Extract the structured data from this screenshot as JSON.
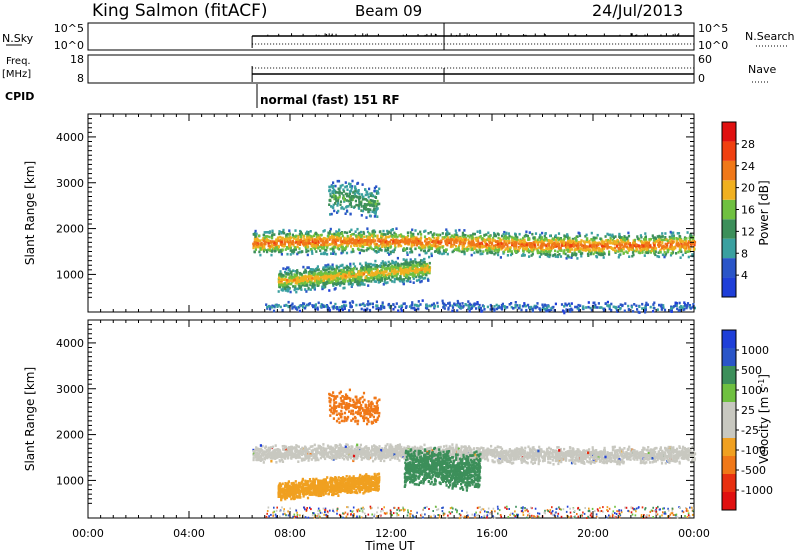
{
  "header": {
    "site": "King Salmon (fitACF)",
    "beam": "Beam 09",
    "date": "24/Jul/2013"
  },
  "nsky_panel": {
    "label": "N.Sky",
    "ticks_left": [
      "10^5",
      "10^0"
    ],
    "ticks_right": [
      "10^5",
      "10^0"
    ],
    "right_label": "N.Search"
  },
  "freq_panel": {
    "label_line1": "Freq.",
    "label_line2": "[MHz]",
    "ticks_left": [
      "18",
      "8"
    ],
    "ticks_right": [
      "60",
      "0"
    ],
    "right_label": "Nave"
  },
  "cpid": {
    "label": "CPID",
    "program": "normal (fast) 151 RF"
  },
  "colors": {
    "power": [
      "#1f3fd8",
      "#2a55c8",
      "#3aa0a0",
      "#3c8f5a",
      "#6fc040",
      "#f0b020",
      "#f07818",
      "#f04010",
      "#e01010"
    ],
    "velocity": [
      "#1f3fd8",
      "#2a55c8",
      "#3c8f5a",
      "#6fc040",
      "#c8c8c0",
      "#c8c8c0",
      "#f0a020",
      "#f07818",
      "#e83010",
      "#e01010"
    ]
  },
  "chart_data": [
    {
      "type": "heatmap",
      "title": "",
      "ylabel": "Slant Range [km]",
      "xlabel": "",
      "ylim": [
        180,
        4500
      ],
      "yticks": [
        1000,
        2000,
        3000,
        4000
      ],
      "xlim_hours": [
        0,
        24
      ],
      "data_start_hour": 6.5,
      "colorbar": {
        "label": "Power [dB]",
        "ticks": [
          "4",
          "8",
          "12",
          "16",
          "20",
          "24",
          "28"
        ],
        "range": [
          0,
          30
        ]
      },
      "features": [
        {
          "desc": "main E/F echo band",
          "start_hour": 6.5,
          "end_hour": 24,
          "range_km": [
            1400,
            2000
          ],
          "peak_power_db": 22
        },
        {
          "desc": "lower tilted band",
          "start_hour": 7.5,
          "end_hour": 13.5,
          "range_km": [
            700,
            1300
          ],
          "peak_power_db": 18
        },
        {
          "desc": "sparse high-range echoes",
          "start_hour": 9.5,
          "end_hour": 11.5,
          "range_km": [
            2200,
            3100
          ],
          "peak_power_db": 12
        },
        {
          "desc": "near-range ground clutter",
          "start_hour": 7,
          "end_hour": 24,
          "range_km": [
            200,
            450
          ],
          "peak_power_db": 6
        }
      ]
    },
    {
      "type": "heatmap",
      "title": "",
      "ylabel": "Slant Range [km]",
      "xlabel": "Time UT",
      "ylim": [
        180,
        4500
      ],
      "yticks": [
        1000,
        2000,
        3000,
        4000
      ],
      "xticks": [
        "00:00",
        "04:00",
        "08:00",
        "12:00",
        "16:00",
        "20:00",
        "00:00"
      ],
      "xlim_hours": [
        0,
        24
      ],
      "colorbar": {
        "label": "Velocity [m s^-1]",
        "ticks": [
          "1000",
          "500",
          "100",
          "25",
          "-25",
          "-100",
          "-500",
          "-1000"
        ]
      },
      "features": [
        {
          "desc": "ground scatter band",
          "start_hour": 6.5,
          "end_hour": 24,
          "range_km": [
            1400,
            1800
          ],
          "velocity_class": "ground"
        },
        {
          "desc": "negative velocity patch",
          "start_hour": 7.5,
          "end_hour": 11.5,
          "range_km": [
            650,
            1100
          ],
          "velocity_ms": -80
        },
        {
          "desc": "positive velocity patch",
          "start_hour": 12.5,
          "end_hour": 15.5,
          "range_km": [
            850,
            1700
          ],
          "velocity_ms": 120
        },
        {
          "desc": "strong negative upper patch",
          "start_hour": 9.5,
          "end_hour": 11.5,
          "range_km": [
            2200,
            3000
          ],
          "velocity_ms": -300
        }
      ]
    }
  ]
}
